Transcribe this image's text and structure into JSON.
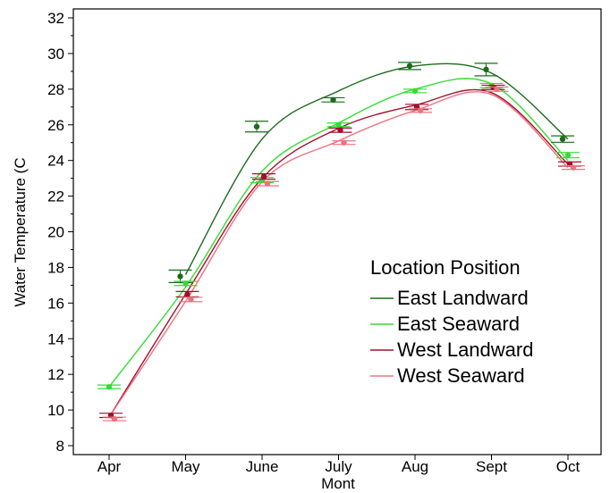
{
  "chart_data": {
    "type": "line",
    "title": "",
    "xlabel": "Mont",
    "ylabel": "Water Temperature (C",
    "categories": [
      "Apr",
      "May",
      "June",
      "July",
      "Aug",
      "Sept",
      "Oct"
    ],
    "ylim": [
      8,
      32
    ],
    "yticks": [
      "8",
      "10",
      "12",
      "14",
      "16",
      "18",
      "20",
      "22",
      "24",
      "26",
      "28",
      "30",
      "32"
    ],
    "grid": false,
    "legend": {
      "title": "Location Position",
      "placement": "center-right"
    },
    "series": [
      {
        "name": "East Landward",
        "color": "#1a6b1a",
        "values": [
          null,
          17.5,
          25.9,
          27.4,
          29.3,
          29.1,
          25.2
        ],
        "error": [
          null,
          0.35,
          0.3,
          0.12,
          0.2,
          0.35,
          0.18
        ]
      },
      {
        "name": "East Seaward",
        "color": "#33dd33",
        "values": [
          11.3,
          17.1,
          22.9,
          26.0,
          27.9,
          28.2,
          24.3
        ],
        "error": [
          0.1,
          0.12,
          0.15,
          0.1,
          0.1,
          0.12,
          0.15
        ]
      },
      {
        "name": "West Landward",
        "color": "#a0102a",
        "values": [
          9.7,
          16.5,
          23.1,
          25.7,
          27.0,
          28.1,
          23.8
        ],
        "error": [
          0.12,
          0.15,
          0.15,
          0.12,
          0.15,
          0.12,
          0.12
        ]
      },
      {
        "name": "West Seaward",
        "color": "#f07080",
        "values": [
          9.5,
          16.2,
          22.7,
          25.0,
          26.8,
          28.0,
          23.6
        ],
        "error": [
          0.1,
          0.12,
          0.12,
          0.1,
          0.1,
          0.12,
          0.1
        ]
      }
    ],
    "fit_curves": [
      {
        "series": "East Landward",
        "values": [
          null,
          17.6,
          25.2,
          27.9,
          29.3,
          28.9,
          25.2
        ]
      },
      {
        "series": "East Seaward",
        "values": [
          11.3,
          16.9,
          23.4,
          26.1,
          28.0,
          28.3,
          24.0
        ]
      },
      {
        "series": "West Landward",
        "values": [
          9.6,
          16.5,
          23.0,
          25.8,
          27.1,
          27.8,
          23.8
        ]
      },
      {
        "series": "West Seaward",
        "values": [
          9.6,
          16.1,
          22.8,
          25.1,
          26.8,
          27.7,
          23.6
        ]
      }
    ]
  }
}
